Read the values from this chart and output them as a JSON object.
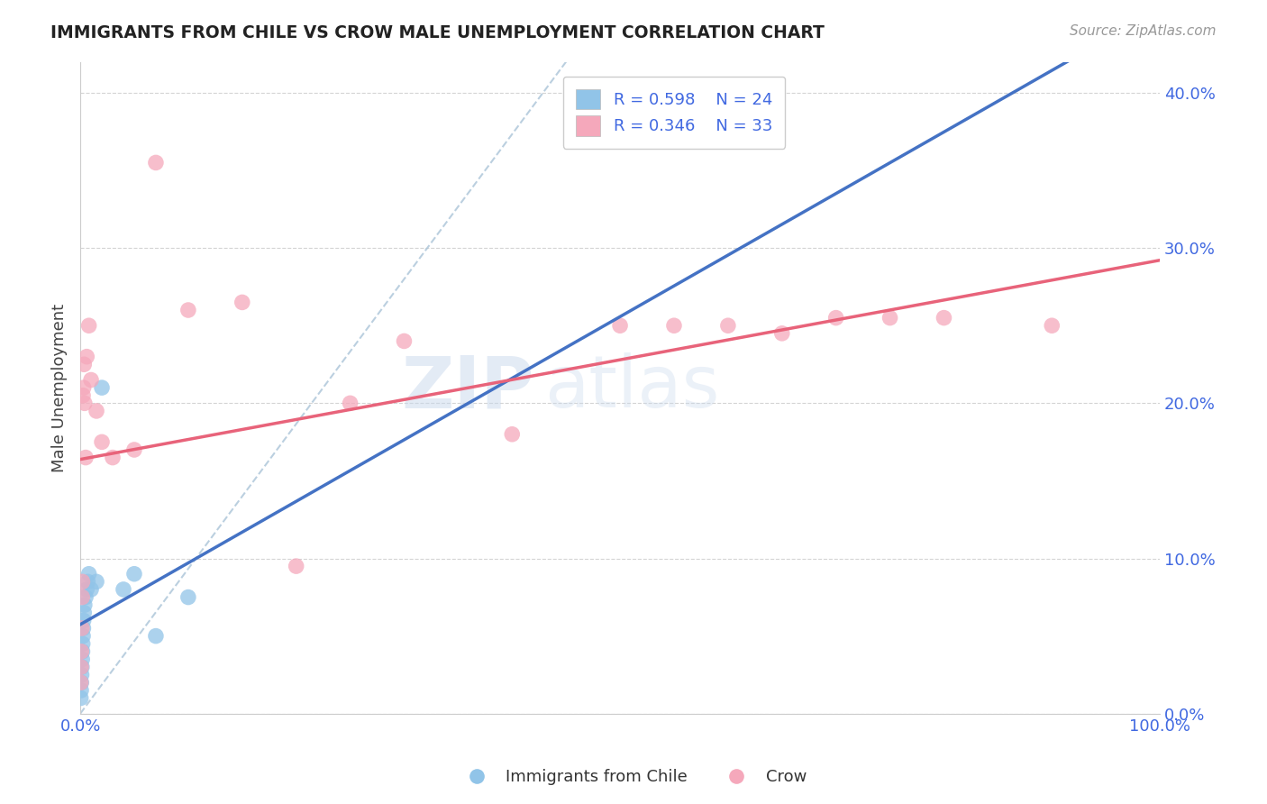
{
  "title": "IMMIGRANTS FROM CHILE VS CROW MALE UNEMPLOYMENT CORRELATION CHART",
  "source": "Source: ZipAtlas.com",
  "ylabel": "Male Unemployment",
  "xlim": [
    0,
    100
  ],
  "ylim": [
    0,
    42
  ],
  "yticks": [
    0,
    10,
    20,
    30,
    40
  ],
  "ytick_labels": [
    "0.0%",
    "10.0%",
    "20.0%",
    "30.0%",
    "40.0%"
  ],
  "xtick_labels": [
    "0.0%",
    "100.0%"
  ],
  "legend_r_blue": "R = 0.598",
  "legend_n_blue": "N = 24",
  "legend_r_pink": "R = 0.346",
  "legend_n_pink": "N = 33",
  "color_blue": "#91c4e8",
  "color_pink": "#f5a8bb",
  "color_blue_line": "#4472c4",
  "color_pink_line": "#e8637a",
  "color_dashed": "#aac4d8",
  "watermark_zip": "ZIP",
  "watermark_atlas": "atlas",
  "blue_x": [
    0.05,
    0.08,
    0.1,
    0.12,
    0.15,
    0.18,
    0.2,
    0.22,
    0.25,
    0.28,
    0.3,
    0.35,
    0.4,
    0.5,
    0.6,
    0.7,
    0.8,
    1.0,
    1.5,
    2.0,
    4.0,
    5.0,
    7.0,
    10.0
  ],
  "blue_y": [
    1.0,
    1.5,
    2.0,
    2.5,
    3.0,
    3.5,
    4.0,
    4.5,
    5.0,
    5.5,
    6.0,
    6.5,
    7.0,
    7.5,
    8.0,
    8.5,
    9.0,
    8.0,
    8.5,
    21.0,
    8.0,
    9.0,
    5.0,
    7.5
  ],
  "pink_x": [
    0.05,
    0.08,
    0.1,
    0.15,
    0.18,
    0.2,
    0.25,
    0.3,
    0.35,
    0.4,
    0.5,
    0.6,
    0.8,
    1.0,
    1.5,
    2.0,
    3.0,
    5.0,
    7.0,
    10.0,
    15.0,
    20.0,
    25.0,
    30.0,
    40.0,
    50.0,
    55.0,
    60.0,
    65.0,
    70.0,
    75.0,
    80.0,
    90.0
  ],
  "pink_y": [
    2.0,
    3.0,
    4.0,
    5.5,
    7.5,
    8.5,
    20.5,
    21.0,
    22.5,
    20.0,
    16.5,
    23.0,
    25.0,
    21.5,
    19.5,
    17.5,
    16.5,
    17.0,
    35.5,
    26.0,
    26.5,
    9.5,
    20.0,
    24.0,
    18.0,
    25.0,
    25.0,
    25.0,
    24.5,
    25.5,
    25.5,
    25.5,
    25.0
  ]
}
